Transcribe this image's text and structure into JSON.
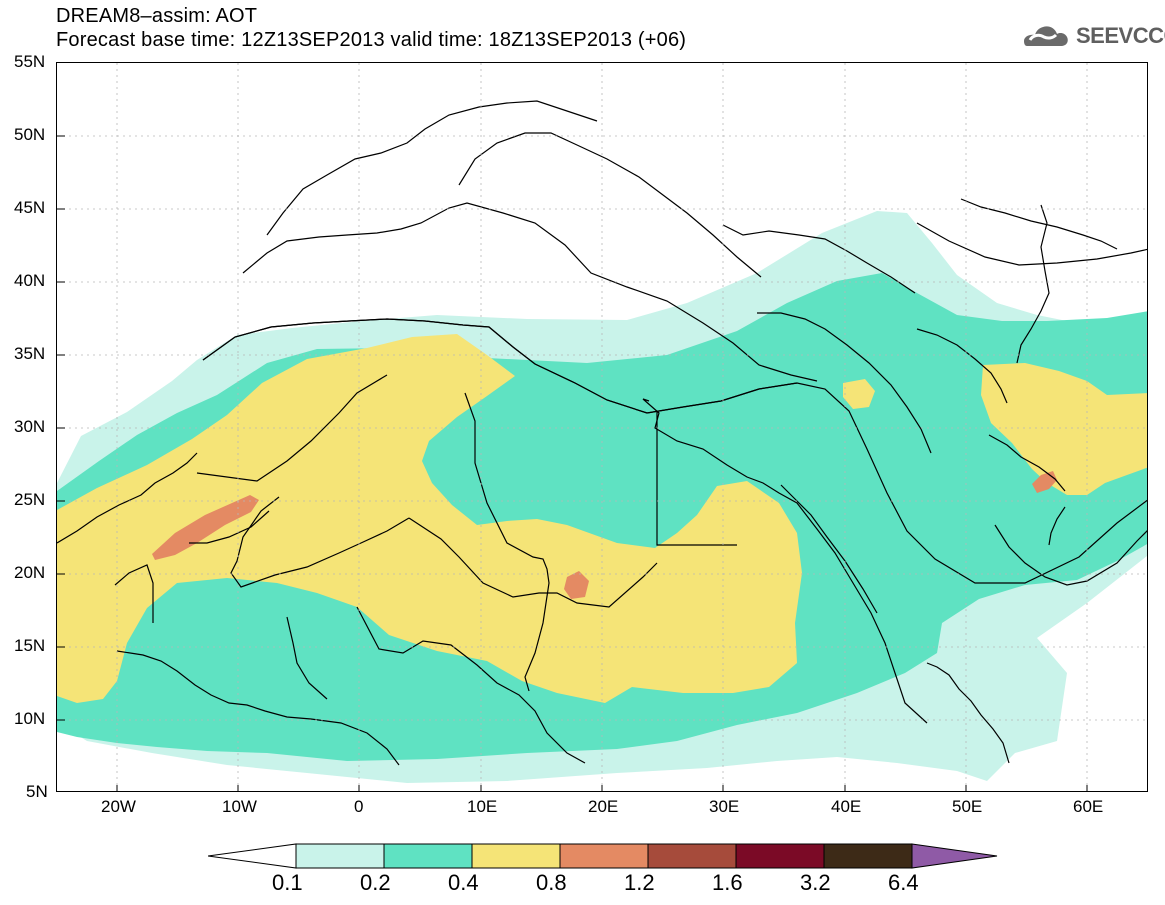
{
  "header": {
    "line1": "DREAM8–assim: AOT",
    "line2": "Forecast base time: 12Z13SEP2013     valid time: 18Z13SEP2013 (+06)"
  },
  "logo": {
    "text": "SEEVCCC",
    "icon": "cloud-icon"
  },
  "map": {
    "lat_labels": [
      "55N",
      "50N",
      "45N",
      "40N",
      "35N",
      "30N",
      "25N",
      "20N",
      "15N",
      "10N",
      "5N"
    ],
    "lon_labels": [
      "20W",
      "10W",
      "0",
      "10E",
      "20E",
      "30E",
      "40E",
      "50E",
      "60E"
    ],
    "colors": {
      "0.1-0.2": "#c9f3ea",
      "0.2-0.4": "#5fe2c2",
      "0.4-0.8": "#f5e477",
      "0.8-1.2": "#e48a63",
      "1.2-1.6": "#a64b3b",
      "1.6-3.2": "#7b0a26",
      "3.2-6.4": "#3d2a17",
      ">6.4": "#8f5aa6"
    }
  },
  "legend": {
    "levels": [
      "0.1",
      "0.2",
      "0.4",
      "0.8",
      "1.2",
      "1.6",
      "3.2",
      "6.4"
    ],
    "segment_colors": [
      "#ffffff",
      "#c9f3ea",
      "#5fe2c2",
      "#f5e477",
      "#e48a63",
      "#a64b3b",
      "#7b0a26",
      "#3d2a17",
      "#8f5aa6"
    ]
  }
}
